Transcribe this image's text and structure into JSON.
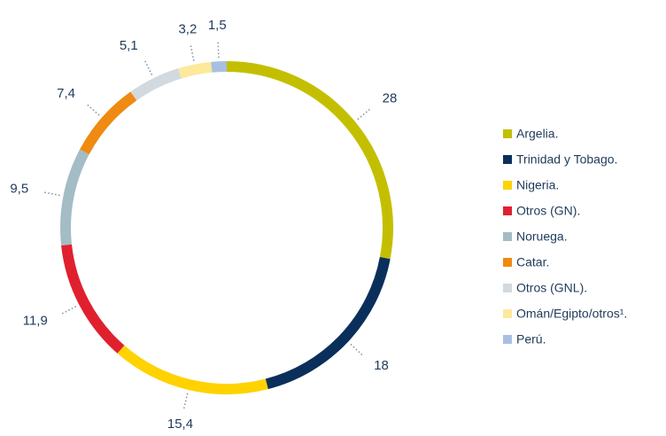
{
  "chart_data": {
    "type": "donut",
    "categories": [
      "Argelia.",
      "Trinidad y Tobago.",
      "Nigeria.",
      "Otros (GN).",
      "Noruega.",
      "Catar.",
      "Otros (GNL).",
      "Omán/Egipto/otros¹.",
      "Perú."
    ],
    "values": [
      28,
      18,
      15.4,
      11.9,
      9.5,
      7.4,
      5.1,
      3.2,
      1.5
    ],
    "value_labels": [
      "28",
      "18",
      "15,4",
      "11,9",
      "9,5",
      "7,4",
      "5,1",
      "3,2",
      "1,5"
    ],
    "colors": [
      "#c3bf00",
      "#0b2f5b",
      "#ffd200",
      "#e0202e",
      "#a4bcc6",
      "#ef8a12",
      "#d2d9df",
      "#fde99b",
      "#a9bfe2"
    ],
    "legend": "right"
  }
}
